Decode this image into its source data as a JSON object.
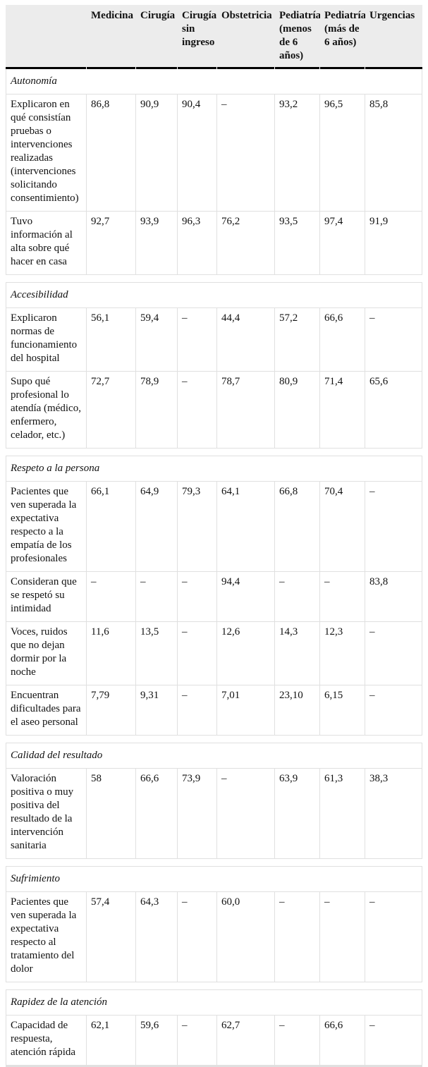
{
  "table": {
    "columns": [
      "",
      "Medicina",
      "Cirugía",
      "Cirugía sin ingreso",
      "Obstetricia",
      "Pediatría (menos de 6 años)",
      "Pediatría (más de 6 años)",
      "Urgencias"
    ],
    "missing_value_symbol": "–",
    "sections": [
      {
        "title": "Autonomía",
        "rows": [
          {
            "label": "Explicaron en qué consistían pruebas o intervenciones realizadas (intervenciones solicitando consentimiento)",
            "values": [
              "86,8",
              "90,9",
              "90,4",
              "–",
              "93,2",
              "96,5",
              "85,8"
            ]
          },
          {
            "label": "Tuvo información al alta sobre qué hacer en casa",
            "values": [
              "92,7",
              "93,9",
              "96,3",
              "76,2",
              "93,5",
              "97,4",
              "91,9"
            ]
          }
        ]
      },
      {
        "title": "Accesibilidad",
        "rows": [
          {
            "label": "Explicaron normas de funcionamiento del hospital",
            "values": [
              "56,1",
              "59,4",
              "–",
              "44,4",
              "57,2",
              "66,6",
              "–"
            ]
          },
          {
            "label": "Supo qué profesional lo atendía (médico, enfermero, celador, etc.)",
            "values": [
              "72,7",
              "78,9",
              "–",
              "78,7",
              "80,9",
              "71,4",
              "65,6"
            ]
          }
        ]
      },
      {
        "title": "Respeto a la persona",
        "rows": [
          {
            "label": "Pacientes que ven superada la expectativa respecto a la empatía de los profesionales",
            "values": [
              "66,1",
              "64,9",
              "79,3",
              "64,1",
              "66,8",
              "70,4",
              "–"
            ]
          },
          {
            "label": "Consideran que se respetó su intimidad",
            "values": [
              "–",
              "–",
              "–",
              "94,4",
              "–",
              "–",
              "83,8"
            ]
          },
          {
            "label": "Voces, ruidos que no dejan dormir por la noche",
            "values": [
              "11,6",
              "13,5",
              "–",
              "12,6",
              "14,3",
              "12,3",
              "–"
            ]
          },
          {
            "label": "Encuentran dificultades para el aseo personal",
            "values": [
              "7,79",
              "9,31",
              "–",
              "7,01",
              "23,10",
              "6,15",
              "–"
            ]
          }
        ]
      },
      {
        "title": "Calidad del resultado",
        "rows": [
          {
            "label": "Valoración positiva o muy positiva del resultado de la intervención sanitaria",
            "values": [
              "58",
              "66,6",
              "73,9",
              "–",
              "63,9",
              "61,3",
              "38,3"
            ]
          }
        ]
      },
      {
        "title": "Sufrimiento",
        "rows": [
          {
            "label": "Pacientes que ven superada la expectativa respecto al tratamiento del dolor",
            "values": [
              "57,4",
              "64,3",
              "–",
              "60,0",
              "–",
              "–",
              "–"
            ]
          }
        ]
      },
      {
        "title": "Rapidez de la atención",
        "rows": [
          {
            "label": "Capacidad de respuesta, atención rápida",
            "values": [
              "62,1",
              "59,6",
              "–",
              "62,7",
              "–",
              "66,6",
              "–"
            ]
          }
        ]
      }
    ],
    "colors": {
      "header_bg": "#ececec",
      "header_rule": "#000000",
      "grid_line": "#e0e0e0",
      "bottom_rule": "#e0e0e0",
      "text": "#111111"
    }
  }
}
